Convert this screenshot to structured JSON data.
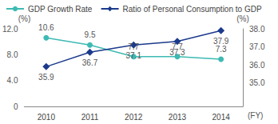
{
  "chart_data": {
    "type": "line",
    "categories": [
      "2010",
      "2011",
      "2012",
      "2013",
      "2014"
    ],
    "x_label": "(FY)",
    "y_label": "(%)",
    "y2_label": "(%)",
    "series": [
      {
        "name": "GDP Growth Rate",
        "color": "#3dbab3",
        "marker": "circle",
        "line_style": "solid",
        "values": [
          10.6,
          9.5,
          7.7,
          7.7,
          7.3
        ]
      },
      {
        "name": "Ratio of Personal Consumption to GDP",
        "color": "#1b3a8c",
        "marker": "diamond",
        "line_style": "solid",
        "axis": "y2",
        "values": [
          35.9,
          36.7,
          37.1,
          37.3,
          37.9
        ]
      }
    ],
    "ylim": [
      0,
      12
    ],
    "yticks": [
      0,
      {
        "value": 4,
        "label": "4.0"
      },
      {
        "value": 8,
        "label": "8.0"
      },
      {
        "value": 12,
        "label": "12.0"
      }
    ],
    "y2lim": [
      33.7,
      38
    ],
    "y2ticks": [
      {
        "value": 35,
        "label": "35.0"
      },
      {
        "value": 36,
        "label": "36.0"
      },
      {
        "value": 37,
        "label": "37.0"
      },
      {
        "value": 38,
        "label": "38.0"
      }
    ],
    "grid": false,
    "legend": "top",
    "data_labels": true
  }
}
